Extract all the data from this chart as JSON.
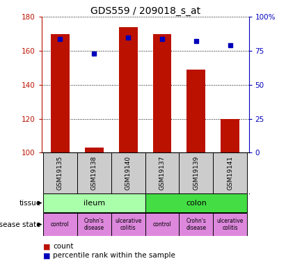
{
  "title": "GDS559 / 209018_s_at",
  "samples": [
    "GSM19135",
    "GSM19138",
    "GSM19140",
    "GSM19137",
    "GSM19139",
    "GSM19141"
  ],
  "bar_values": [
    170,
    103,
    174,
    170,
    149,
    120
  ],
  "percentile_values": [
    84,
    73,
    85,
    84,
    82,
    79
  ],
  "bar_color": "#bb1100",
  "percentile_color": "#0000bb",
  "ylim_left": [
    100,
    180
  ],
  "ylim_right": [
    0,
    100
  ],
  "yticks_left": [
    100,
    120,
    140,
    160,
    180
  ],
  "yticks_right": [
    0,
    25,
    50,
    75,
    100
  ],
  "ytick_labels_right": [
    "0",
    "25",
    "50",
    "75",
    "100%"
  ],
  "tissue_labels": [
    "ileum",
    "colon"
  ],
  "tissue_colors": [
    "#aaffaa",
    "#44dd44"
  ],
  "disease_labels": [
    "control",
    "Crohn's\ndisease",
    "ulcerative\ncolitis",
    "control",
    "Crohn's\ndisease",
    "ulcerative\ncolitis"
  ],
  "disease_color": "#dd88dd",
  "sample_bg_color": "#cccccc",
  "bar_bottom": 100,
  "bar_width": 0.55,
  "grid_color": "black",
  "grid_linestyle": ":",
  "background_color": "white"
}
